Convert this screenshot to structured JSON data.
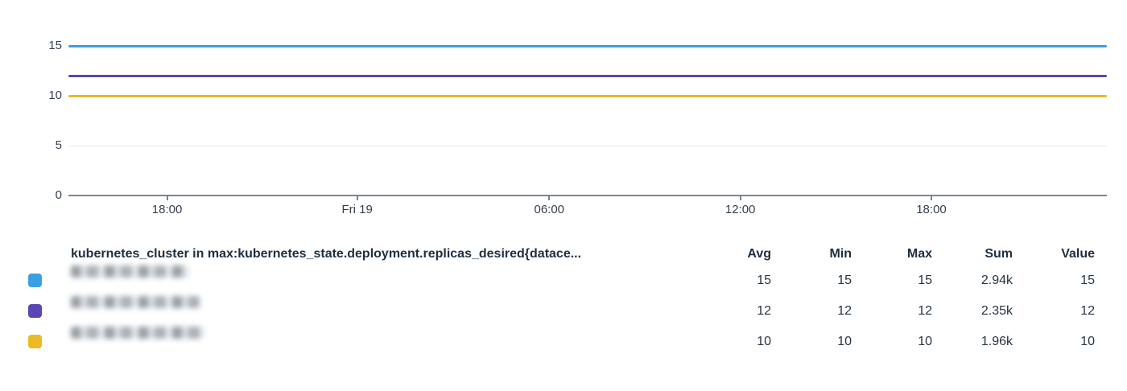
{
  "chart_data": {
    "type": "line",
    "title": "",
    "xlabel": "",
    "ylabel": "",
    "x_tick_labels": [
      "18:00",
      "Fri 19",
      "06:00",
      "12:00",
      "18:00"
    ],
    "x_tick_positions_pct": [
      9.5,
      27.8,
      46.3,
      64.7,
      83.1
    ],
    "y_ticks": [
      0,
      5,
      10,
      15
    ],
    "ylim": [
      0,
      16.8
    ],
    "grid": "horizontal",
    "legend_position": "bottom-table",
    "series": [
      {
        "name": "redacted-cluster-1",
        "color": "#3b9fe4",
        "constant_value": 15
      },
      {
        "name": "redacted-cluster-2",
        "color": "#5a47b2",
        "constant_value": 12
      },
      {
        "name": "redacted-cluster-3",
        "color": "#eabb22",
        "constant_value": 10
      }
    ]
  },
  "legend_table": {
    "query_header": "kubernetes_cluster in max:kubernetes_state.deployment.replicas_desired{datace...",
    "columns": [
      "Avg",
      "Min",
      "Max",
      "Sum",
      "Value"
    ],
    "rows": [
      {
        "color": "#3b9fe4",
        "label_redacted": true,
        "avg": "15",
        "min": "15",
        "max": "15",
        "sum": "2.94k",
        "value": "15"
      },
      {
        "color": "#5a47b2",
        "label_redacted": true,
        "avg": "12",
        "min": "12",
        "max": "12",
        "sum": "2.35k",
        "value": "12"
      },
      {
        "color": "#eabb22",
        "label_redacted": true,
        "avg": "10",
        "min": "10",
        "max": "10",
        "sum": "1.96k",
        "value": "10"
      }
    ]
  }
}
